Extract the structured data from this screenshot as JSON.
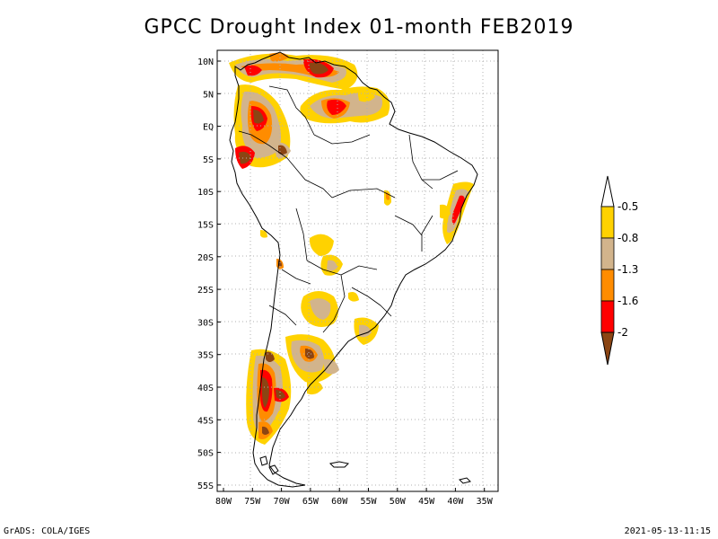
{
  "title": "GPCC Drought Index 01-month FEB2019",
  "map": {
    "lat_labels": [
      "10N",
      "5N",
      "EQ",
      "5S",
      "10S",
      "15S",
      "20S",
      "25S",
      "30S",
      "35S",
      "40S",
      "45S",
      "50S",
      "55S"
    ],
    "lon_labels": [
      "80W",
      "75W",
      "70W",
      "65W",
      "60W",
      "55W",
      "50W",
      "45W",
      "40W",
      "35W"
    ],
    "grid": "dotted",
    "region": "South America"
  },
  "legend": {
    "labels": [
      "-0.5",
      "-0.8",
      "-1.3",
      "-1.6",
      "-2"
    ],
    "colors": [
      "#ffffff",
      "#ffd200",
      "#d2b48c",
      "#ff8c00",
      "#ff0000",
      "#8b4513"
    ]
  },
  "footer": {
    "left": "GrADS: COLA/IGES",
    "right": "2021-05-13-11:15"
  }
}
